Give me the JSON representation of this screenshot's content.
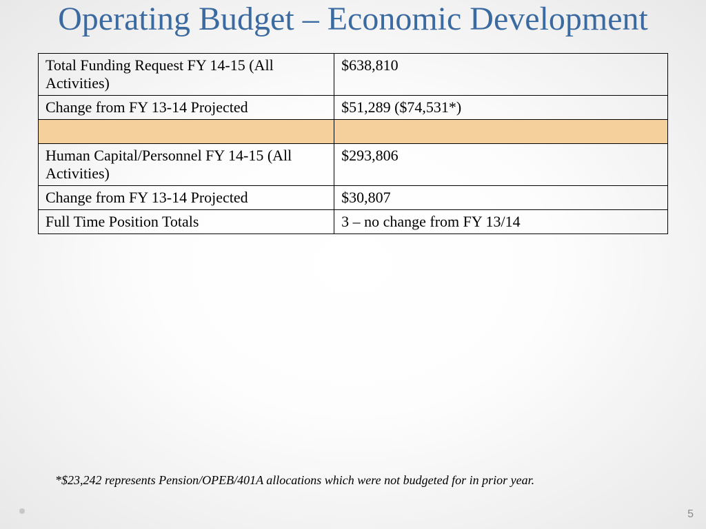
{
  "title": "Operating Budget – Economic Development",
  "title_color": "#3b6aa0",
  "title_fontsize": 48,
  "table": {
    "label_fontsize": 22,
    "border_color": "#000000",
    "highlight_color": "#f5cf9c",
    "rows": [
      {
        "label": "Total Funding Request FY 14-15 (All Activities)",
        "value": "$638,810",
        "highlight": false
      },
      {
        "label": "Change from FY 13-14 Projected",
        "value": "$51,289 ($74,531*)",
        "highlight": false
      },
      {
        "label": "",
        "value": "",
        "highlight": true
      },
      {
        "label": "Human Capital/Personnel FY 14-15 (All Activities)",
        "value": "$293,806",
        "highlight": false
      },
      {
        "label": "Change from FY 13-14 Projected",
        "value": "$30,807",
        "highlight": false
      },
      {
        "label": "Full Time Position Totals",
        "value": "3 – no change from FY 13/14",
        "highlight": false
      }
    ]
  },
  "footnote": "*$23,242 represents Pension/OPEB/401A allocations which were not budgeted for in prior year.",
  "footnote_fontsize": 18,
  "page_number": "5",
  "page_number_fontsize": 16
}
